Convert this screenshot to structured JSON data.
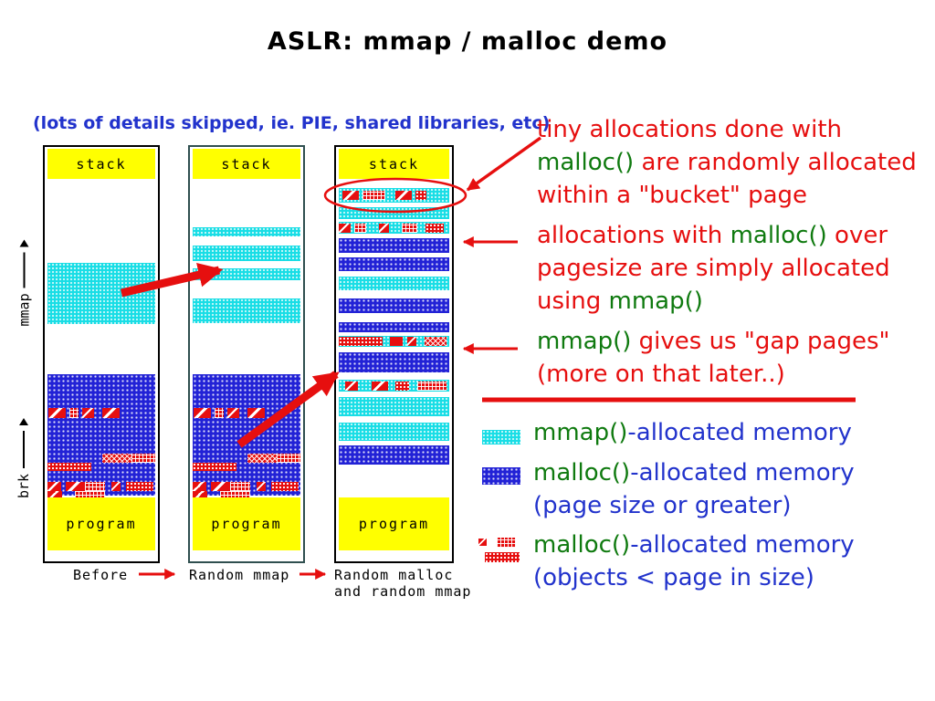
{
  "title": "ASLR: mmap / malloc demo",
  "subtitle": "(lots of details skipped, ie. PIE, shared libraries, etc)",
  "colors": {
    "annotation_red": "#e60f0f",
    "function_green": "#0f7a0f",
    "legend_blue": "#2233cc",
    "mmap_cyan": "#18dde5",
    "malloc_blue": "#2222d6",
    "stack_program_yellow": "#ffff00"
  },
  "diagram": {
    "side_labels": {
      "mmap": "mmap",
      "brk": "brk"
    },
    "columns": [
      {
        "stack_label": "stack",
        "program_label": "program",
        "caption_lines": [
          "Before"
        ]
      },
      {
        "stack_label": "stack",
        "program_label": "program",
        "caption_lines": [
          "Random mmap"
        ]
      },
      {
        "stack_label": "stack",
        "program_label": "program",
        "caption_lines": [
          "Random malloc",
          "and random mmap"
        ]
      }
    ]
  },
  "annotations": [
    {
      "lines": [
        [
          {
            "t": "tiny allocations done with",
            "c": "red"
          }
        ],
        [
          {
            "t": "malloc()",
            "c": "green"
          },
          {
            "t": " are randomly allocated",
            "c": "red"
          }
        ],
        [
          {
            "t": "within a \"bucket\" page",
            "c": "red"
          }
        ]
      ]
    },
    {
      "lines": [
        [
          {
            "t": "allocations with ",
            "c": "red"
          },
          {
            "t": "malloc()",
            "c": "green"
          },
          {
            "t": " over",
            "c": "red"
          }
        ],
        [
          {
            "t": "pagesize are simply allocated",
            "c": "red"
          }
        ],
        [
          {
            "t": "using ",
            "c": "red"
          },
          {
            "t": "mmap()",
            "c": "green"
          }
        ]
      ]
    },
    {
      "lines": [
        [
          {
            "t": "mmap()",
            "c": "green"
          },
          {
            "t": " gives us \"gap pages\"",
            "c": "red"
          }
        ],
        [
          {
            "t": "(more on that later..)",
            "c": "red"
          }
        ]
      ]
    }
  ],
  "legend": [
    {
      "lines": [
        [
          {
            "t": "mmap()",
            "c": "green"
          },
          {
            "t": "-allocated memory",
            "c": "blue"
          }
        ]
      ]
    },
    {
      "lines": [
        [
          {
            "t": "malloc()",
            "c": "green"
          },
          {
            "t": "-allocated memory",
            "c": "blue"
          }
        ],
        [
          {
            "t": "(page size or greater)",
            "c": "blue"
          }
        ]
      ]
    },
    {
      "lines": [
        [
          {
            "t": "malloc()",
            "c": "green"
          },
          {
            "t": "-allocated memory",
            "c": "blue"
          }
        ],
        [
          {
            "t": "(objects < page in size)",
            "c": "blue"
          }
        ]
      ]
    }
  ]
}
